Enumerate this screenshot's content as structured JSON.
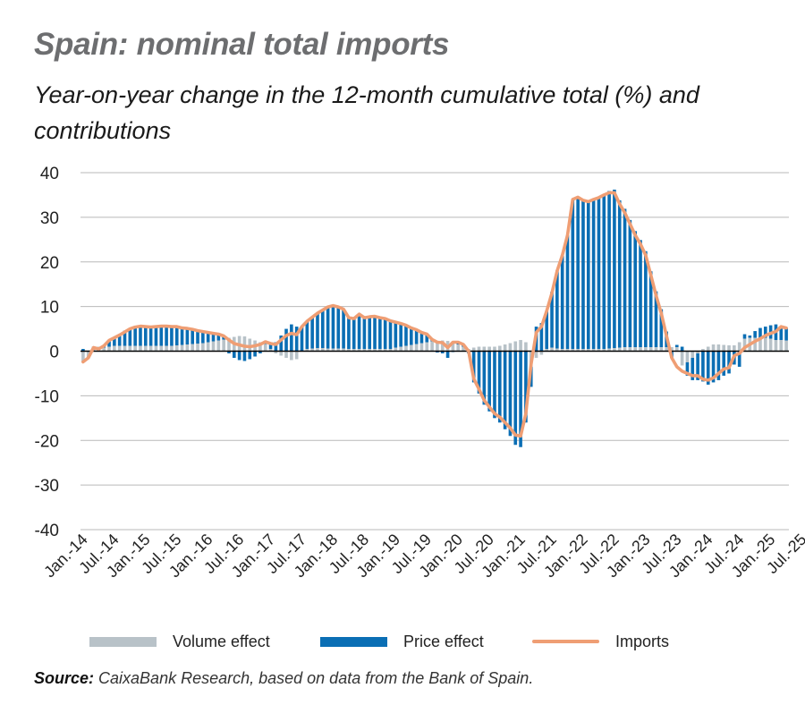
{
  "title": "Spain: nominal total imports",
  "subtitle": "Year-on-year change in the 12-month cumulative total (%) and contributions",
  "source_label": "Source:",
  "source_text": " CaixaBank Research, based on data from the Bank of Spain.",
  "legend": {
    "volume": "Volume effect",
    "price": "Price effect",
    "imports": "Imports"
  },
  "colors": {
    "volume": "#b8c2c8",
    "price": "#0a6eb4",
    "imports": "#ef9e74",
    "grid": "#b9b9b9",
    "axis": "#000000"
  },
  "chart_data": {
    "type": "bar",
    "start": "Jan.-14",
    "yticks": [
      40,
      30,
      20,
      10,
      0,
      -10,
      -20,
      -30,
      -40
    ],
    "ylim": [
      -40,
      40
    ],
    "xticks": [
      "Jan.-14",
      "Jul.-14",
      "Jan.-15",
      "Jul.-15",
      "Jan.-16",
      "Jul.-16",
      "Jan.-17",
      "Jul.-17",
      "Jan.-18",
      "Jul.-18",
      "Jan.-19",
      "Jul.-19",
      "Jan.-20",
      "Jul.-20",
      "Jan.-21",
      "Jul.-21",
      "Jan.-22",
      "Jul.-22",
      "Jan.-23",
      "Jul.-23",
      "Jan.-24",
      "Jul.-24",
      "Jan.-25",
      "Jul.-25"
    ],
    "series": [
      {
        "name": "Volume effect",
        "kind": "bar",
        "values": [
          -2.5,
          -1.5,
          0.5,
          1.0,
          0.8,
          1.0,
          1.2,
          1.2,
          1.2,
          1.2,
          1.2,
          1.2,
          1.2,
          1.2,
          1.2,
          1.2,
          1.2,
          1.2,
          1.3,
          1.4,
          1.5,
          1.6,
          1.7,
          1.8,
          2.0,
          2.2,
          2.4,
          2.6,
          3.0,
          3.2,
          3.4,
          3.3,
          2.8,
          2.4,
          2.0,
          1.6,
          0.5,
          -0.5,
          -1.0,
          -1.5,
          -2.0,
          -1.8,
          0.0,
          0.5,
          0.6,
          0.7,
          0.7,
          0.6,
          0.6,
          0.6,
          0.6,
          0.5,
          0.5,
          0.5,
          0.5,
          0.5,
          0.5,
          0.5,
          0.5,
          0.5,
          0.8,
          1.0,
          1.2,
          1.4,
          1.6,
          1.8,
          2.0,
          2.2,
          2.3,
          2.4,
          2.3,
          2.2,
          1.5,
          1.0,
          0.5,
          0.8,
          1.0,
          1.0,
          1.0,
          1.0,
          1.2,
          1.5,
          1.8,
          2.2,
          2.5,
          2.0,
          -3.5,
          -1.5,
          -0.8,
          0.5,
          0.8,
          0.6,
          0.5,
          0.5,
          0.5,
          0.5,
          0.5,
          0.5,
          0.5,
          0.5,
          0.5,
          0.6,
          0.7,
          0.8,
          0.9,
          0.9,
          0.9,
          0.9,
          0.9,
          0.9,
          0.9,
          0.9,
          0.9,
          0.9,
          0.9,
          -3.2,
          -2.5,
          -1.5,
          -0.5,
          0.5,
          1.0,
          1.5,
          1.5,
          1.4,
          1.3,
          1.3,
          2.0,
          2.8,
          3.0,
          3.0,
          3.0,
          3.0,
          2.8,
          2.5,
          2.5,
          2.4,
          2.3
        ]
      },
      {
        "name": "Price effect",
        "kind": "bar",
        "values": [
          0.5,
          0.0,
          0.5,
          0.0,
          0.5,
          1.2,
          1.8,
          2.6,
          3.4,
          3.8,
          4.2,
          4.4,
          4.3,
          4.2,
          4.3,
          4.4,
          4.4,
          4.3,
          4.2,
          3.8,
          3.6,
          3.3,
          2.9,
          2.6,
          2.2,
          1.8,
          1.4,
          0.8,
          -0.5,
          -1.5,
          -2.0,
          -2.2,
          -1.8,
          -1.2,
          -0.5,
          0.5,
          1.2,
          2.0,
          3.5,
          5.0,
          6.0,
          5.5,
          5.5,
          6.2,
          7.0,
          7.8,
          8.5,
          9.3,
          9.6,
          9.3,
          8.8,
          7.0,
          6.8,
          7.8,
          7.0,
          7.2,
          7.3,
          7.0,
          6.8,
          6.3,
          5.7,
          5.2,
          4.6,
          3.8,
          3.2,
          2.4,
          1.8,
          0.4,
          -0.3,
          -0.5,
          -1.5,
          -0.2,
          0.5,
          0.5,
          -0.5,
          -7.0,
          -9.5,
          -12.0,
          -13.5,
          -15.0,
          -16.0,
          -17.5,
          -19.0,
          -21.0,
          -21.5,
          -16.0,
          -4.5,
          5.5,
          6.3,
          8.5,
          12.5,
          17.5,
          21.0,
          25.5,
          33.5,
          34.0,
          33.3,
          33.0,
          33.5,
          33.8,
          34.3,
          35.3,
          35.5,
          33.0,
          31.0,
          28.5,
          26.0,
          24.0,
          21.5,
          17.0,
          12.5,
          8.5,
          3.5,
          -1.5,
          0.5,
          1.0,
          -3.0,
          -5.0,
          -6.0,
          -6.8,
          -7.5,
          -7.0,
          -6.5,
          -5.5,
          -5.0,
          -3.0,
          -3.5,
          1.0,
          0.5,
          1.5,
          2.2,
          2.5,
          3.0,
          3.5,
          2.7,
          2.8,
          3.0,
          2.9
        ]
      },
      {
        "name": "Imports",
        "kind": "line",
        "values": [
          -2.4,
          -1.5,
          0.8,
          0.5,
          1.2,
          2.4,
          3.0,
          3.6,
          4.3,
          5.0,
          5.4,
          5.6,
          5.5,
          5.4,
          5.5,
          5.6,
          5.6,
          5.5,
          5.5,
          5.2,
          5.1,
          4.9,
          4.6,
          4.4,
          4.2,
          4.0,
          3.8,
          3.4,
          2.5,
          1.7,
          1.4,
          1.1,
          1.0,
          1.2,
          1.5,
          2.1,
          1.7,
          1.5,
          2.5,
          3.5,
          4.0,
          3.7,
          5.5,
          6.7,
          7.6,
          8.5,
          9.2,
          9.9,
          10.2,
          9.9,
          9.4,
          7.5,
          7.3,
          8.3,
          7.5,
          7.7,
          7.8,
          7.5,
          7.3,
          6.8,
          6.5,
          6.2,
          5.8,
          5.2,
          4.8,
          4.2,
          3.8,
          2.6,
          2.0,
          1.9,
          0.8,
          2.0,
          2.0,
          1.5,
          0.0,
          -6.2,
          -8.5,
          -11.0,
          -12.5,
          -14.0,
          -14.8,
          -16.0,
          -17.2,
          -18.8,
          -19.0,
          -14.0,
          -3.0,
          4.2,
          5.5,
          9.0,
          13.0,
          18.0,
          21.5,
          26.0,
          34.0,
          34.5,
          33.8,
          33.5,
          34.0,
          34.4,
          35.0,
          35.5,
          35.5,
          33.0,
          31.0,
          28.5,
          26.0,
          24.0,
          21.5,
          17.0,
          12.5,
          8.5,
          3.5,
          -1.5,
          -3.5,
          -4.5,
          -5.0,
          -5.5,
          -5.5,
          -6.3,
          -6.5,
          -6.0,
          -5.0,
          -4.0,
          -3.7,
          -1.0,
          -0.5,
          0.8,
          1.5,
          2.2,
          2.8,
          3.5,
          4.0,
          4.4,
          5.5,
          5.2
        ]
      }
    ]
  }
}
